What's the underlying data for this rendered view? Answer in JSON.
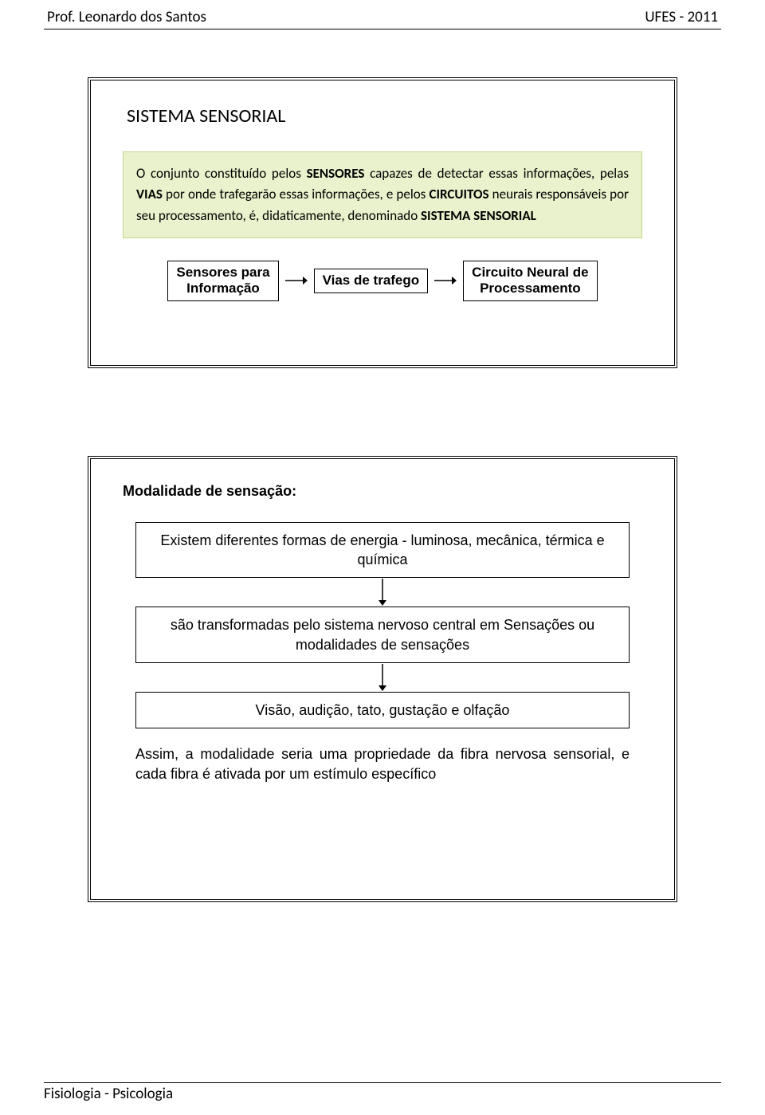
{
  "header": {
    "left": "Prof. Leonardo dos Santos",
    "right": "UFES - 2011"
  },
  "slide1": {
    "title": "SISTEMA SENSORIAL",
    "intro_html": "O conjunto constituído pelos <b>SENSORES</b> capazes de detectar essas informações, pelas <b>VIAS</b> por onde trafegarão essas informações, e pelos <b>CIRCUITOS</b> neurais responsáveis por seu processamento, é, didaticamente, denominado <b>SISTEMA SENSORIAL</b>",
    "flow": {
      "box1_line1": "Sensores para",
      "box1_line2": "Informação",
      "box2": "Vias de trafego",
      "box3_line1": "Circuito Neural de",
      "box3_line2": "Processamento"
    }
  },
  "slide2": {
    "title": "Modalidade de sensação:",
    "box1": "Existem diferentes formas de energia - luminosa, mecânica, térmica e química",
    "box2": "são transformadas pelo sistema nervoso central em Sensações ou modalidades de sensações",
    "box3": "Visão, audição, tato, gustação e olfação",
    "final": "Assim, a modalidade seria uma propriedade da fibra nervosa sensorial, e cada fibra é ativada por um estímulo específico"
  },
  "footer": "Fisiologia  - Psicologia",
  "colors": {
    "greenbox_bg": "#e9f2cc",
    "greenbox_border": "#c3d88b",
    "text": "#000000",
    "page_bg": "#ffffff"
  }
}
